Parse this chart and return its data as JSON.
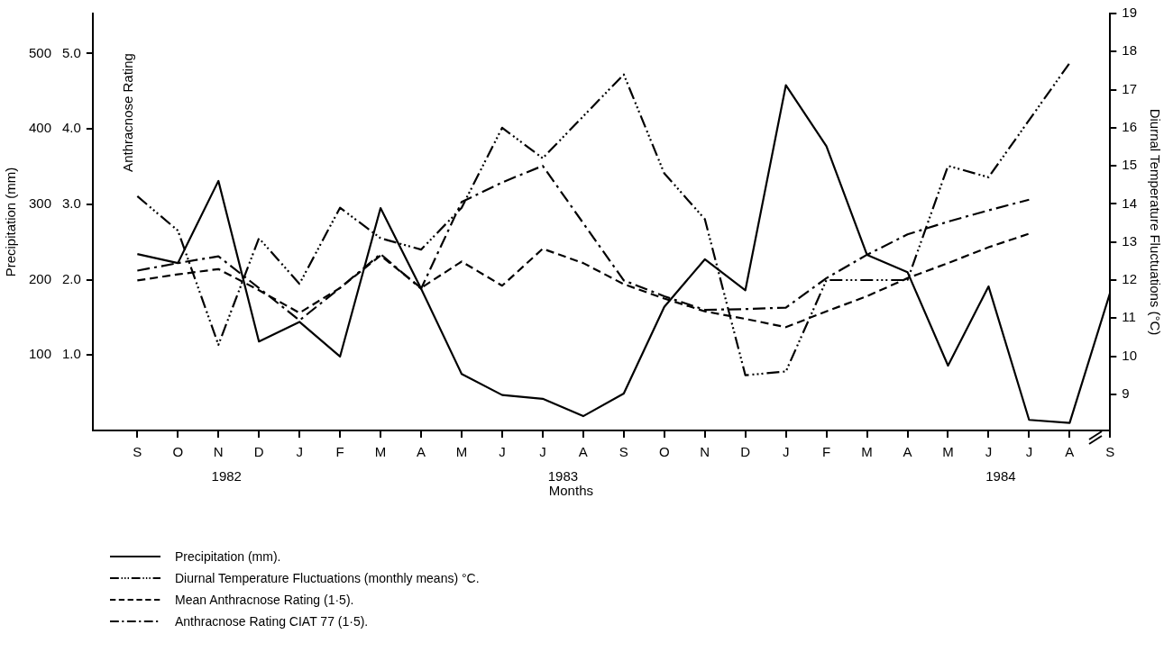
{
  "chart_data": {
    "type": "line",
    "categories": [
      "S",
      "O",
      "N",
      "D",
      "J",
      "F",
      "M",
      "A",
      "M",
      "J",
      "J",
      "A",
      "S",
      "O",
      "N",
      "D",
      "J",
      "F",
      "M",
      "A",
      "M",
      "J",
      "J",
      "A",
      "S"
    ],
    "xlabel": "Months",
    "ylabel": "Precipitation (mm)",
    "y2label": "Diurnal Temperature Fluctuations (°C)",
    "y3label": "Anthracnose Rating",
    "ylim": [
      0,
      553
    ],
    "yticks": [
      100,
      200,
      300,
      400,
      500
    ],
    "y2lim": [
      8.05,
      19
    ],
    "y2ticks": [
      9,
      10,
      11,
      12,
      13,
      14,
      15,
      16,
      17,
      18,
      19
    ],
    "y3lim": [
      0,
      5.53
    ],
    "y3ticks": [
      {
        "value": 1,
        "label": "1.0"
      },
      {
        "value": 2,
        "label": "2.0"
      },
      {
        "value": 3,
        "label": "3.0"
      },
      {
        "value": 4,
        "label": "4.0"
      },
      {
        "value": 5,
        "label": "5.0"
      }
    ],
    "annotations": [
      "1982",
      "1983",
      "1984"
    ],
    "grid": false,
    "legend": "bottom left",
    "marker": "none",
    "series": [
      {
        "name": "Precipitation (mm).",
        "color": "#000000",
        "line_style": "solid",
        "values": [
          234,
          222,
          331,
          118,
          144,
          98,
          295,
          188,
          75,
          47,
          42,
          19,
          49,
          164,
          227,
          186,
          458,
          377,
          233,
          210,
          86,
          191,
          14,
          10,
          183
        ]
      },
      {
        "name": "Diurnal Temperature Fluctuations (monthly means) °C.",
        "color": "#000000",
        "line_style": "dashdotdotdot",
        "axis": "y2",
        "values": [
          14.2,
          13.3,
          10.3,
          13.1,
          11.9,
          13.9,
          13.1,
          12.8,
          13.9,
          16.0,
          15.2,
          16.3,
          17.4,
          14.8,
          13.6,
          9.5,
          9.6,
          12.0,
          12.0,
          12.0,
          15.0,
          14.7,
          16.2,
          17.7,
          null
        ]
      },
      {
        "name": "Mean Anthracnose Rating (1·5).",
        "color": "#000000",
        "line_style": "dashed",
        "axis": "y3",
        "values": [
          1.99,
          2.07,
          2.14,
          1.86,
          1.56,
          1.89,
          2.32,
          1.89,
          2.24,
          1.92,
          2.41,
          2.22,
          1.94,
          1.75,
          1.58,
          1.48,
          1.37,
          1.58,
          1.78,
          2.02,
          2.22,
          2.43,
          2.61,
          null,
          null
        ]
      },
      {
        "name": "Anthracnose Rating CIAT 77 (1·5).",
        "color": "#000000",
        "line_style": "dashdot",
        "axis": "y3",
        "values": [
          2.12,
          2.22,
          2.31,
          1.89,
          1.46,
          1.89,
          2.34,
          1.88,
          3.03,
          3.29,
          3.51,
          2.75,
          1.99,
          1.78,
          1.6,
          1.61,
          1.63,
          2.02,
          2.33,
          2.6,
          2.77,
          2.92,
          3.06,
          null,
          null
        ]
      }
    ]
  }
}
